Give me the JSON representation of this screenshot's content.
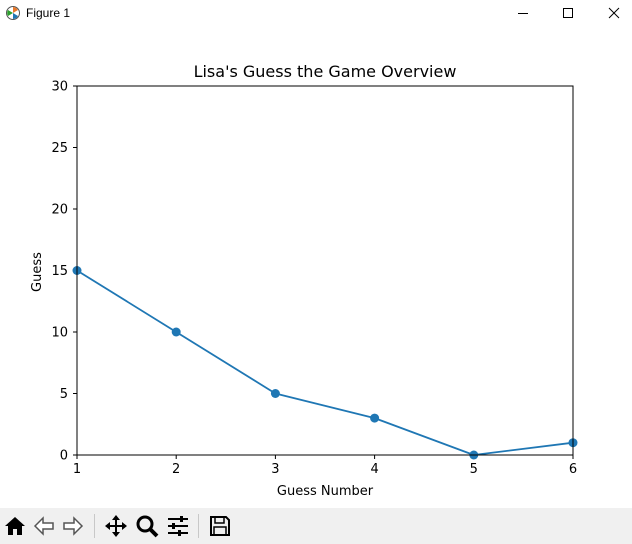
{
  "window": {
    "title": "Figure 1",
    "controls": [
      "minimize-icon",
      "maximize-icon",
      "close-icon"
    ]
  },
  "toolbar": {
    "buttons": [
      "home-icon",
      "back-arrow-icon",
      "forward-arrow-icon",
      "pan-icon",
      "zoom-icon",
      "configure-subplots-icon",
      "save-icon"
    ]
  },
  "colors": {
    "series": "#1f77b4",
    "toolbar_bg": "#f0f0f0"
  },
  "chart_data": {
    "type": "line",
    "title": "Lisa's Guess the Game Overview",
    "xlabel": "Guess Number",
    "ylabel": "Guess",
    "x": [
      1,
      2,
      3,
      4,
      5,
      6
    ],
    "values": [
      15,
      10,
      5,
      3,
      0,
      1
    ],
    "xlim": [
      1,
      6
    ],
    "ylim": [
      0,
      30
    ],
    "xticks": [
      "1",
      "2",
      "3",
      "4",
      "5",
      "6"
    ],
    "yticks": [
      "0",
      "5",
      "10",
      "15",
      "20",
      "25",
      "30"
    ],
    "grid": false,
    "markers": "circle"
  }
}
